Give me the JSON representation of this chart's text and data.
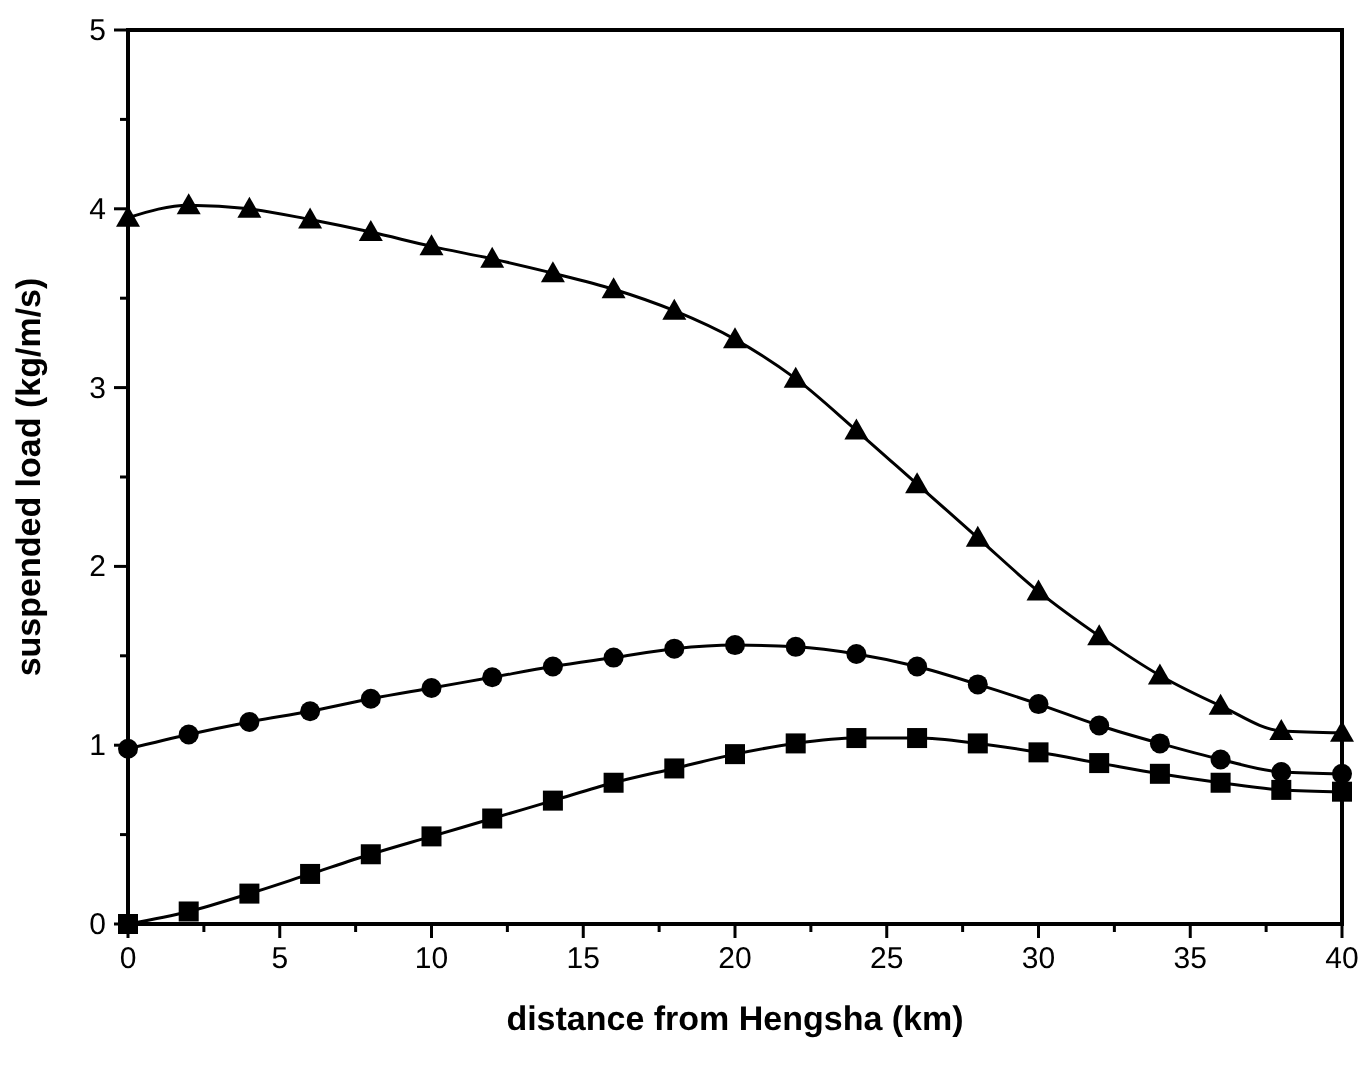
{
  "chart_data": {
    "type": "line",
    "xlabel": "distance from Hengsha (km)",
    "ylabel": "suspended load (kg/m/s)",
    "x": [
      0,
      2,
      4,
      6,
      8,
      10,
      12,
      14,
      16,
      18,
      20,
      22,
      24,
      26,
      28,
      30,
      32,
      34,
      36,
      38,
      40
    ],
    "xlim": [
      0,
      40
    ],
    "xticks": [
      0,
      {
        "value": 2.5,
        "label": null
      },
      5,
      {
        "value": 7.5,
        "label": null
      },
      10,
      {
        "value": 12.5,
        "label": null
      },
      15,
      {
        "value": 17.5,
        "label": null
      },
      20,
      {
        "value": 22.5,
        "label": null
      },
      25,
      {
        "value": 27.5,
        "label": null
      },
      30,
      {
        "value": 32.5,
        "label": null
      },
      35,
      {
        "value": 37.5,
        "label": null
      },
      40
    ],
    "ylim": [
      0,
      5
    ],
    "yticks": [
      0,
      {
        "value": 0.5,
        "label": null
      },
      1,
      {
        "value": 1.5,
        "label": null
      },
      2,
      {
        "value": 2.5,
        "label": null
      },
      3,
      {
        "value": 3.5,
        "label": null
      },
      4,
      {
        "value": 4.5,
        "label": null
      },
      5
    ],
    "line_style": "solid",
    "series": [
      {
        "color": "#000000",
        "marker": "triangle",
        "values": [
          3.95,
          4.02,
          4.0,
          3.94,
          3.87,
          3.79,
          3.72,
          3.64,
          3.55,
          3.43,
          3.27,
          3.05,
          2.76,
          2.46,
          2.16,
          1.86,
          1.61,
          1.39,
          1.22,
          1.08,
          1.07
        ]
      },
      {
        "color": "#000000",
        "marker": "circle",
        "values": [
          0.98,
          1.06,
          1.13,
          1.19,
          1.26,
          1.32,
          1.38,
          1.44,
          1.49,
          1.54,
          1.56,
          1.55,
          1.51,
          1.44,
          1.34,
          1.23,
          1.11,
          1.01,
          0.92,
          0.85,
          0.84
        ]
      },
      {
        "color": "#000000",
        "marker": "square",
        "values": [
          0,
          0.07,
          0.17,
          0.28,
          0.39,
          0.49,
          0.59,
          0.69,
          0.79,
          0.87,
          0.95,
          1.01,
          1.04,
          1.04,
          1.01,
          0.96,
          0.9,
          0.84,
          0.79,
          0.75,
          0.74
        ]
      }
    ]
  }
}
